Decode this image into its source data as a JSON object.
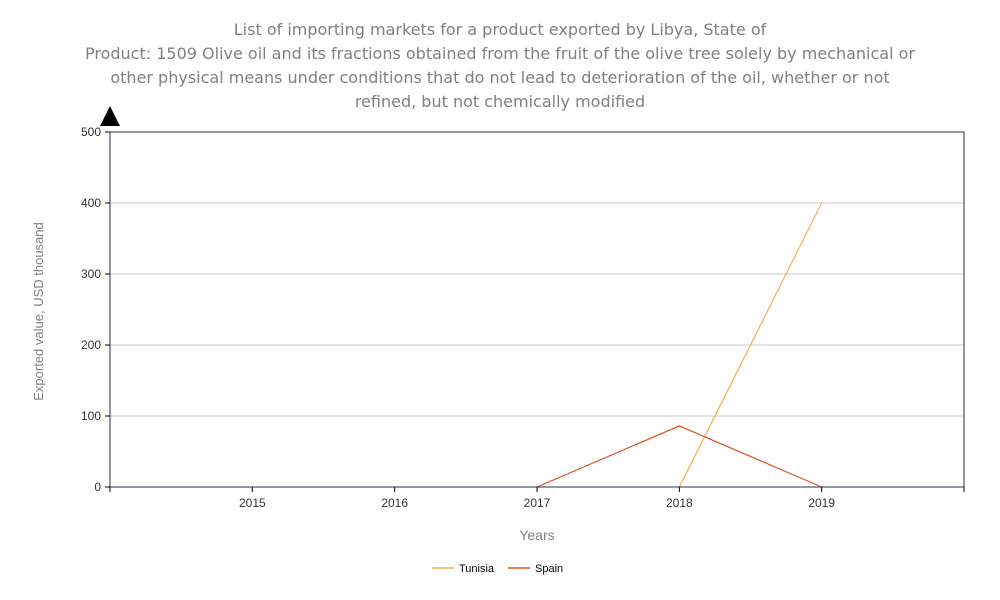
{
  "chart_data": {
    "type": "line",
    "title": {
      "line1": "List of importing markets for a product exported by Libya, State of",
      "line2": "Product: 1509 Olive oil and its fractions obtained from the fruit of the olive tree solely by mechanical or",
      "line3": "other physical means under conditions that do not lead to deterioration of the oil, whether or not",
      "line4": "refined, but not chemically modified"
    },
    "xlabel": "Years",
    "ylabel": "Exported value, USD thousand",
    "x": [
      2015,
      2016,
      2017,
      2018,
      2019
    ],
    "x_tick_labels": [
      "2015",
      "2016",
      "2017",
      "2018",
      "2019"
    ],
    "xlim": [
      2014,
      2020
    ],
    "y_ticks": [
      0,
      100,
      200,
      300,
      400,
      500
    ],
    "ylim": [
      0,
      500
    ],
    "grid": true,
    "legend_position": "bottom-center",
    "series": [
      {
        "name": "Tunisia",
        "color": "#f7b04d",
        "points": [
          [
            2018,
            0
          ],
          [
            2019,
            400
          ]
        ]
      },
      {
        "name": "Spain",
        "color": "#d9531e",
        "points": [
          [
            2017,
            0
          ],
          [
            2018,
            86
          ],
          [
            2019,
            0
          ]
        ]
      }
    ]
  },
  "colors": {
    "text": "#808080",
    "axis": "#1f3050",
    "grid": "#c8c8c8",
    "tick_label": "#333333"
  }
}
